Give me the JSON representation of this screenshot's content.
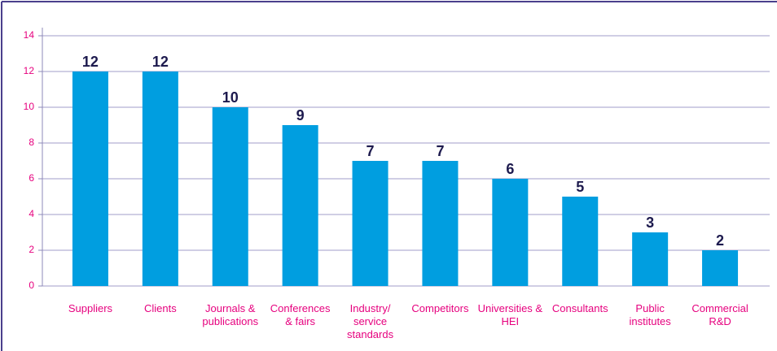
{
  "chart_data": {
    "type": "bar",
    "categories": [
      "Suppliers",
      "Clients",
      "Journals & publications",
      "Conferences & fairs",
      "Industry/ service standards",
      "Competitors",
      "Universities & HEI",
      "Consultants",
      "Public institutes",
      "Commercial R&D"
    ],
    "values": [
      12,
      12,
      10,
      9,
      7,
      7,
      6,
      5,
      3,
      2
    ],
    "color": "#009ee0",
    "ylim": [
      0,
      14
    ],
    "yticks": [
      0,
      2,
      4,
      6,
      8,
      10,
      12,
      14
    ],
    "grid": true
  }
}
